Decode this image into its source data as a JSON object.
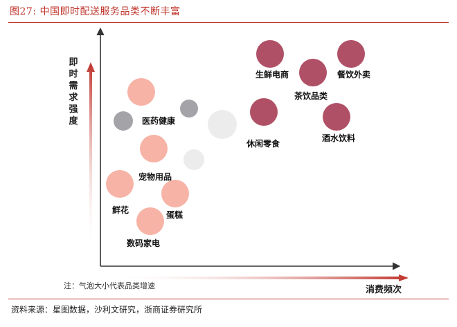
{
  "figure": {
    "title": "图27:   中国即时配送服务品类不断丰富",
    "source": "资料来源：星图数据，沙利文研究，浙商证券研究所",
    "note": "注：气泡大小代表品类增速",
    "y_axis_label": "即时需求强度",
    "x_axis_label": "消费频次"
  },
  "colors": {
    "accent": "#c0342b",
    "dark_category": "#b05066",
    "light_category": "#f7b3a6",
    "gray_bubble": "#a3a3a8",
    "faint_bubble": "#ececec"
  },
  "labels": {
    "fresh_ecommerce": "生鲜电商",
    "catering_takeout": "餐饮外卖",
    "tea_drinks": "茶饮品类",
    "leisure_snacks": "休闲零食",
    "liquor_drinks": "酒水饮料",
    "medicine_health": "医药健康",
    "pet_supplies": "宠物用品",
    "flowers": "鲜花",
    "cake": "蛋糕",
    "digital_appliances": "数码家电"
  }
}
